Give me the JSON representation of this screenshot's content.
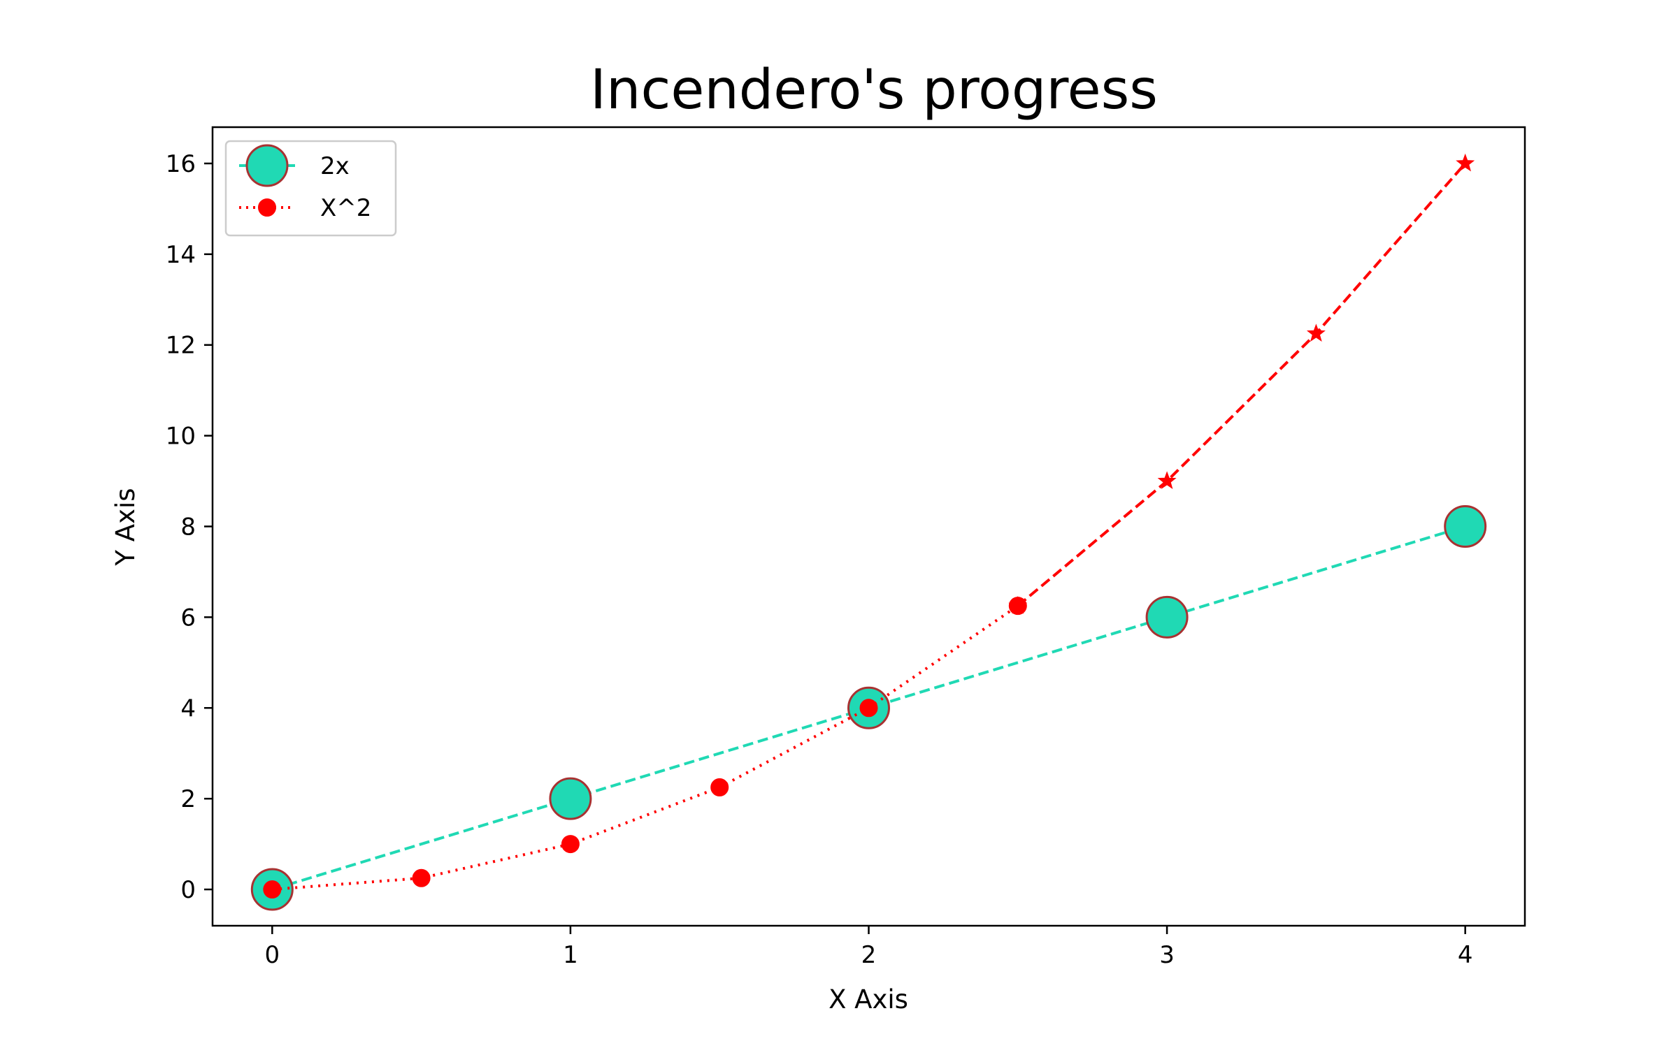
{
  "chart_data": {
    "type": "line",
    "title": "Incendero's progress",
    "xlabel": "X Axis",
    "ylabel": "Y Axis",
    "xlim": [
      -0.2,
      4.2
    ],
    "ylim": [
      -0.8,
      16.8
    ],
    "xticks": [
      0,
      1,
      2,
      3,
      4
    ],
    "yticks": [
      0,
      2,
      4,
      6,
      8,
      10,
      12,
      14,
      16
    ],
    "grid": false,
    "legend_position": "top-left",
    "series": [
      {
        "name": "2x",
        "color": "#20d9b4",
        "marker_edge": "#a83232",
        "marker": "circle-large",
        "linestyle": "dashed",
        "x": [
          0,
          1,
          2,
          3,
          4
        ],
        "y": [
          0,
          2,
          4,
          6,
          8
        ]
      },
      {
        "name": "X^2",
        "color": "#ff0000",
        "marker": "circle",
        "linestyle": "dotted",
        "x": [
          0,
          0.5,
          1,
          1.5,
          2,
          2.5
        ],
        "y": [
          0,
          0.25,
          1,
          2.25,
          4,
          6.25
        ]
      },
      {
        "color": "#ff0000",
        "marker": "star",
        "linestyle": "dashed",
        "x": [
          2.5,
          3,
          3.5,
          4
        ],
        "y": [
          6.25,
          9,
          12.25,
          16
        ]
      }
    ]
  }
}
